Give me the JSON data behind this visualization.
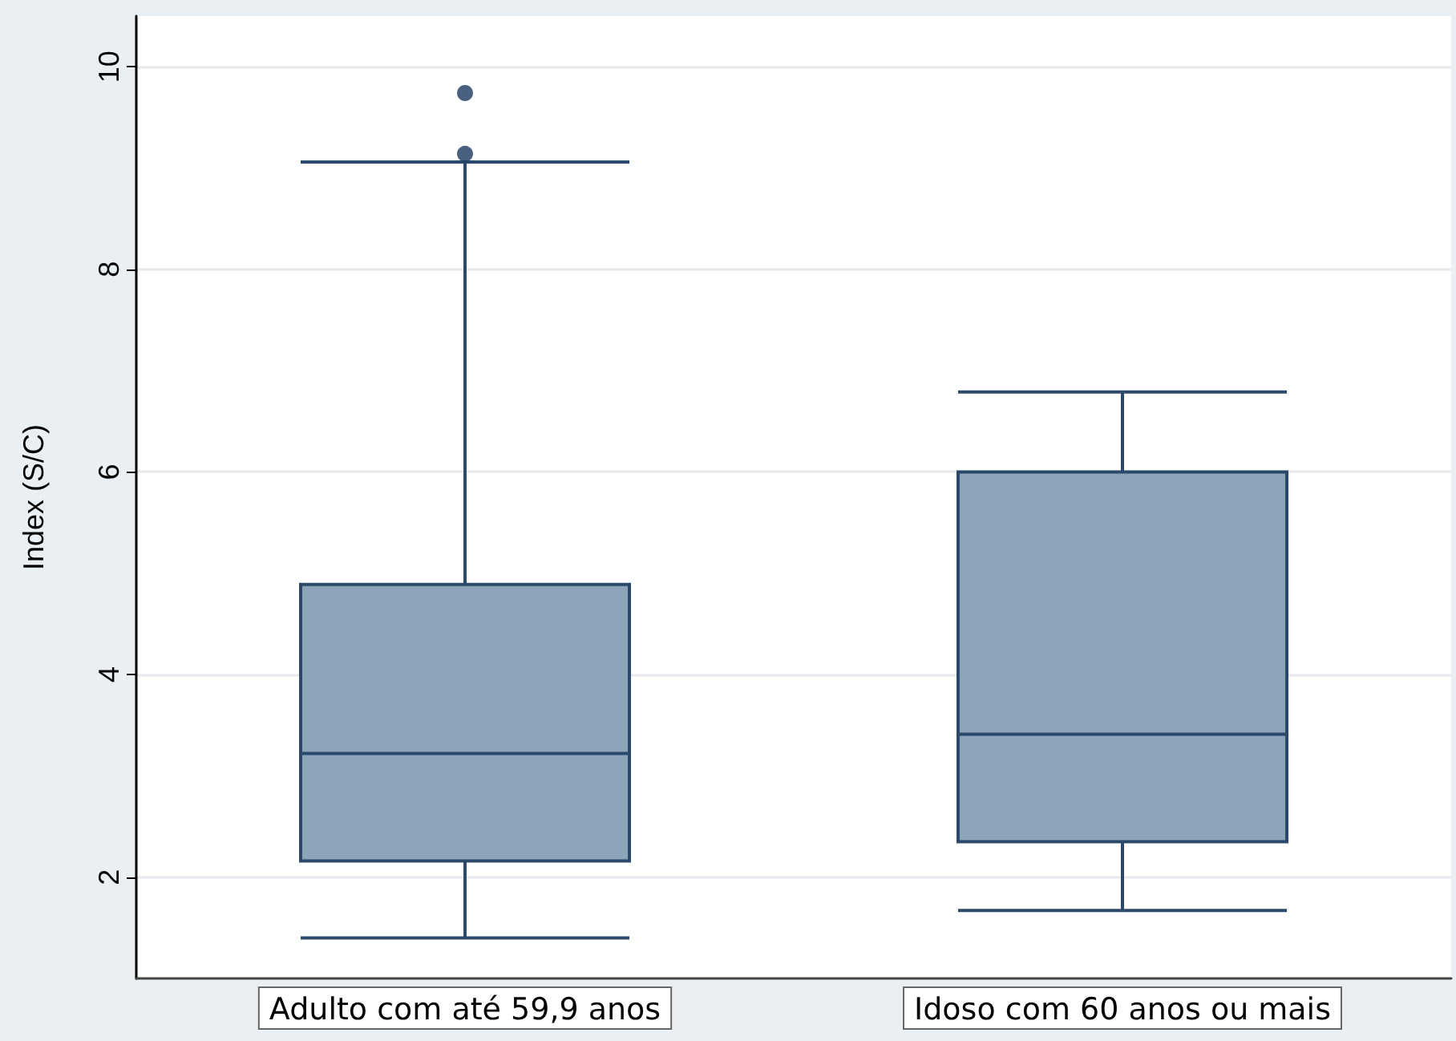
{
  "chart_data": {
    "type": "box",
    "ylabel": "Index (S/C)",
    "categories": [
      "Adulto com até 59,9 anos",
      "Idoso com 60 anos ou mais"
    ],
    "boxes": [
      {
        "low": 1.4,
        "q1": 2.16,
        "median": 3.22,
        "q3": 4.89,
        "high": 9.06,
        "outliers": [
          9.14,
          9.74
        ]
      },
      {
        "low": 1.67,
        "q1": 2.35,
        "median": 3.41,
        "q3": 6.0,
        "high": 6.79
      }
    ],
    "color": "#8ea4b9",
    "ylim": [
      1,
      10.5
    ],
    "yticks": [
      2,
      4,
      6,
      8,
      10
    ],
    "grid": "y"
  }
}
